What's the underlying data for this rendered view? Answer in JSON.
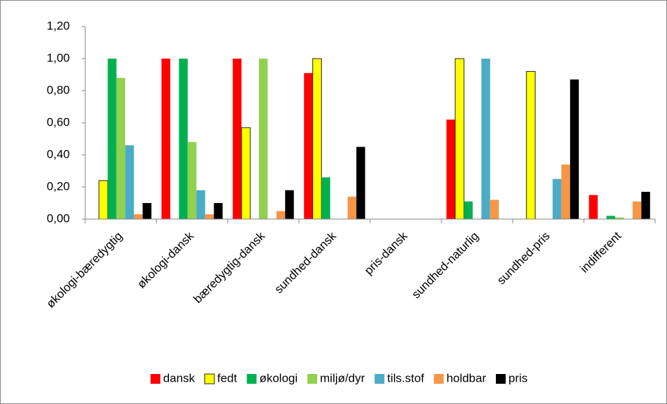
{
  "chart_data": {
    "type": "bar",
    "categories": [
      "økologi-bæredygtig",
      "økologi-dansk",
      "bæredygtig-dansk",
      "sundhed-dansk",
      "pris-dansk",
      "sundhed-naturlig",
      "sundhed-pris",
      "indifferent"
    ],
    "series": [
      {
        "name": "dansk",
        "color": "#ff0000",
        "values": [
          0,
          1.0,
          1.0,
          0.91,
          0,
          0.62,
          0,
          0.15
        ]
      },
      {
        "name": "fedt",
        "color": "#ffff00",
        "edgecolor": "#1f1f1f",
        "values": [
          0.24,
          0,
          0.57,
          1.0,
          0,
          1.0,
          0.92,
          0
        ]
      },
      {
        "name": "økologi",
        "color": "#00b050",
        "values": [
          1.0,
          1.0,
          0,
          0.26,
          0,
          0.11,
          0,
          0.02
        ]
      },
      {
        "name": "miljø/dyr",
        "color": "#92d050",
        "values": [
          0.88,
          0.48,
          1.0,
          0,
          0,
          0,
          0,
          0.01
        ]
      },
      {
        "name": "tils.stof",
        "color": "#4bacc6",
        "values": [
          0.46,
          0.18,
          0,
          0,
          0,
          1.0,
          0.25,
          0
        ]
      },
      {
        "name": "holdbar",
        "color": "#f79646",
        "values": [
          0.03,
          0.03,
          0.05,
          0.14,
          0,
          0.12,
          0.34,
          0.11
        ]
      },
      {
        "name": "pris",
        "color": "#000000",
        "values": [
          0.1,
          0.1,
          0.18,
          0.45,
          0,
          0,
          0.87,
          0.17
        ]
      }
    ],
    "ylim": [
      0,
      1.2
    ],
    "yticks": [
      {
        "value": 0,
        "label": "0,00"
      },
      {
        "value": 0.2,
        "label": "0,20"
      },
      {
        "value": 0.4,
        "label": "0,40"
      },
      {
        "value": 0.6,
        "label": "0,60"
      },
      {
        "value": 0.8,
        "label": "0,80"
      },
      {
        "value": 1.0,
        "label": "1,00"
      },
      {
        "value": 1.2,
        "label": "1,20"
      }
    ],
    "grid": false,
    "legend": "bottom"
  }
}
